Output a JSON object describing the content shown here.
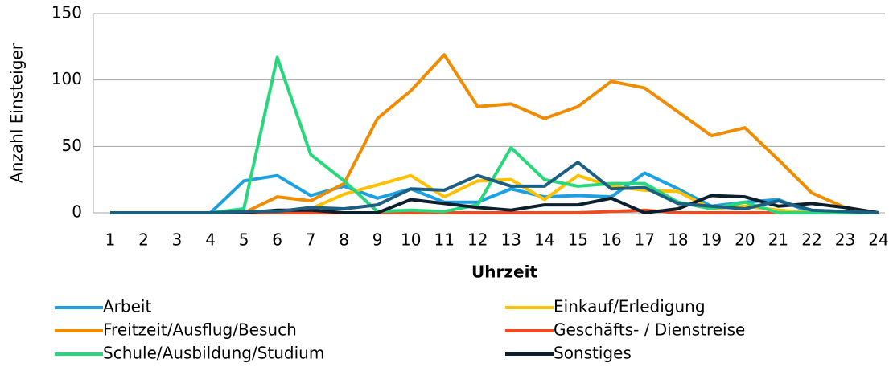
{
  "chart_data": {
    "type": "line",
    "xlabel": "Uhrzeit",
    "ylabel": "Anzahl Einsteiger",
    "categories": [
      1,
      2,
      3,
      4,
      5,
      6,
      7,
      8,
      9,
      10,
      11,
      12,
      13,
      14,
      15,
      16,
      17,
      18,
      19,
      20,
      21,
      22,
      23,
      24
    ],
    "ylim": [
      0,
      150
    ],
    "yticks": [
      0,
      50,
      100,
      150
    ],
    "grid": true,
    "series": [
      {
        "name": "Arbeit",
        "color": "#1ba1e2",
        "values": [
          0,
          0,
          0,
          0,
          24,
          28,
          13,
          20,
          11,
          18,
          8,
          8,
          18,
          12,
          13,
          12,
          30,
          18,
          5,
          8,
          10,
          0,
          0,
          0
        ]
      },
      {
        "name": "Einkauf/Erledigung",
        "color": "#ffc000",
        "values": [
          0,
          0,
          0,
          0,
          0,
          0,
          3,
          14,
          21,
          28,
          12,
          24,
          25,
          10,
          28,
          20,
          17,
          16,
          3,
          5,
          2,
          0,
          0,
          0
        ]
      },
      {
        "name": "Freitzeit/Ausflug/Besuch",
        "color": "#f08c00",
        "values": [
          0,
          0,
          0,
          0,
          0,
          12,
          9,
          22,
          71,
          92,
          119,
          80,
          82,
          71,
          80,
          99,
          94,
          76,
          58,
          64,
          40,
          15,
          4,
          0
        ]
      },
      {
        "name": "Geschäfts- / Dienstreise",
        "color": "#f04a23",
        "values": [
          0,
          0,
          0,
          0,
          0,
          0,
          0,
          0,
          0,
          0,
          0,
          0,
          0,
          0,
          0,
          1,
          2,
          0,
          0,
          0,
          0,
          0,
          0,
          0
        ]
      },
      {
        "name": "Schule/Ausbildung/Studium",
        "color": "#28d77c",
        "values": [
          0,
          0,
          0,
          0,
          3,
          117,
          44,
          24,
          1,
          2,
          1,
          6,
          49,
          25,
          20,
          22,
          22,
          8,
          3,
          8,
          0,
          0,
          0,
          0
        ]
      },
      {
        "name": "Sonstiges",
        "color": "#0d1f2d",
        "values": [
          0,
          0,
          0,
          0,
          0,
          2,
          2,
          0,
          0,
          10,
          7,
          4,
          2,
          6,
          6,
          11,
          0,
          3,
          13,
          12,
          5,
          7,
          4,
          0
        ]
      },
      {
        "color": "#1d5f80",
        "values": [
          0,
          0,
          0,
          0,
          1,
          1,
          4,
          3,
          6,
          18,
          17,
          28,
          20,
          20,
          38,
          18,
          19,
          7,
          5,
          3,
          9,
          2,
          1,
          0
        ]
      }
    ]
  }
}
